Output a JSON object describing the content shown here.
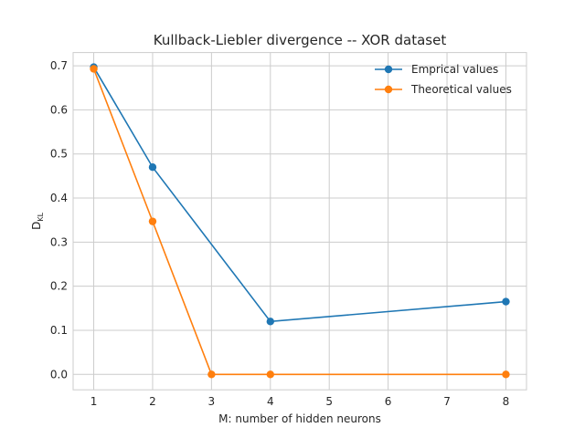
{
  "chart_data": {
    "type": "line",
    "title": "Kullback-Liebler divergence -- XOR dataset",
    "xlabel": "M: number of hidden neurons",
    "ylabel": "D",
    "ylabel_subscript": "KL",
    "x_ticks": [
      1,
      2,
      3,
      4,
      5,
      6,
      7,
      8
    ],
    "y_ticks": [
      "0.0",
      "0.1",
      "0.2",
      "0.3",
      "0.4",
      "0.5",
      "0.6",
      "0.7"
    ],
    "xlim": [
      0.65,
      8.35
    ],
    "ylim": [
      -0.035,
      0.73
    ],
    "grid": true,
    "legend_position": "top-right",
    "series": [
      {
        "name": "Emprical values",
        "color": "#1f77b4",
        "x": [
          1,
          2,
          4,
          8
        ],
        "y": [
          0.697,
          0.47,
          0.12,
          0.165
        ]
      },
      {
        "name": "Theoretical values",
        "color": "#ff7f0e",
        "x": [
          1,
          2,
          3,
          4,
          8
        ],
        "y": [
          0.693,
          0.347,
          0.0,
          0.0,
          0.0
        ]
      }
    ]
  }
}
